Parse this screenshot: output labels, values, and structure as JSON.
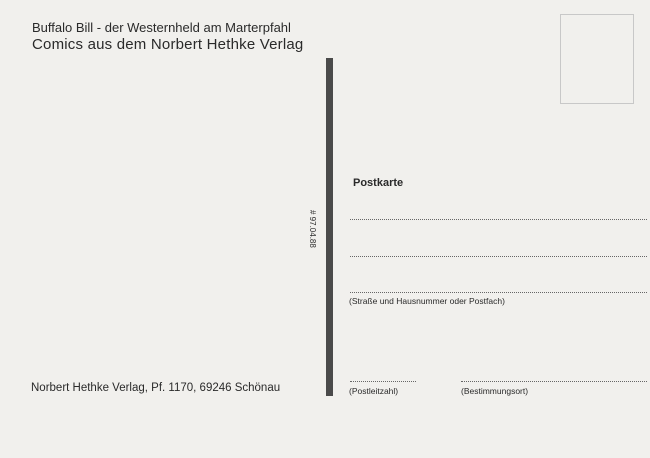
{
  "header": {
    "line1": "Buffalo Bill - der Westernheld am Marterpfahl",
    "line2": "Comics aus dem Norbert Hethke Verlag"
  },
  "divider_code": "# 97.04.88",
  "address": {
    "title": "Postkarte",
    "street_label": "(Straße und Hausnummer oder Postfach)",
    "postcode_label": "(Postleitzahl)",
    "city_label": "(Bestimmungsort)"
  },
  "publisher": "Norbert Hethke Verlag, Pf. 1170, 69246 Schönau"
}
